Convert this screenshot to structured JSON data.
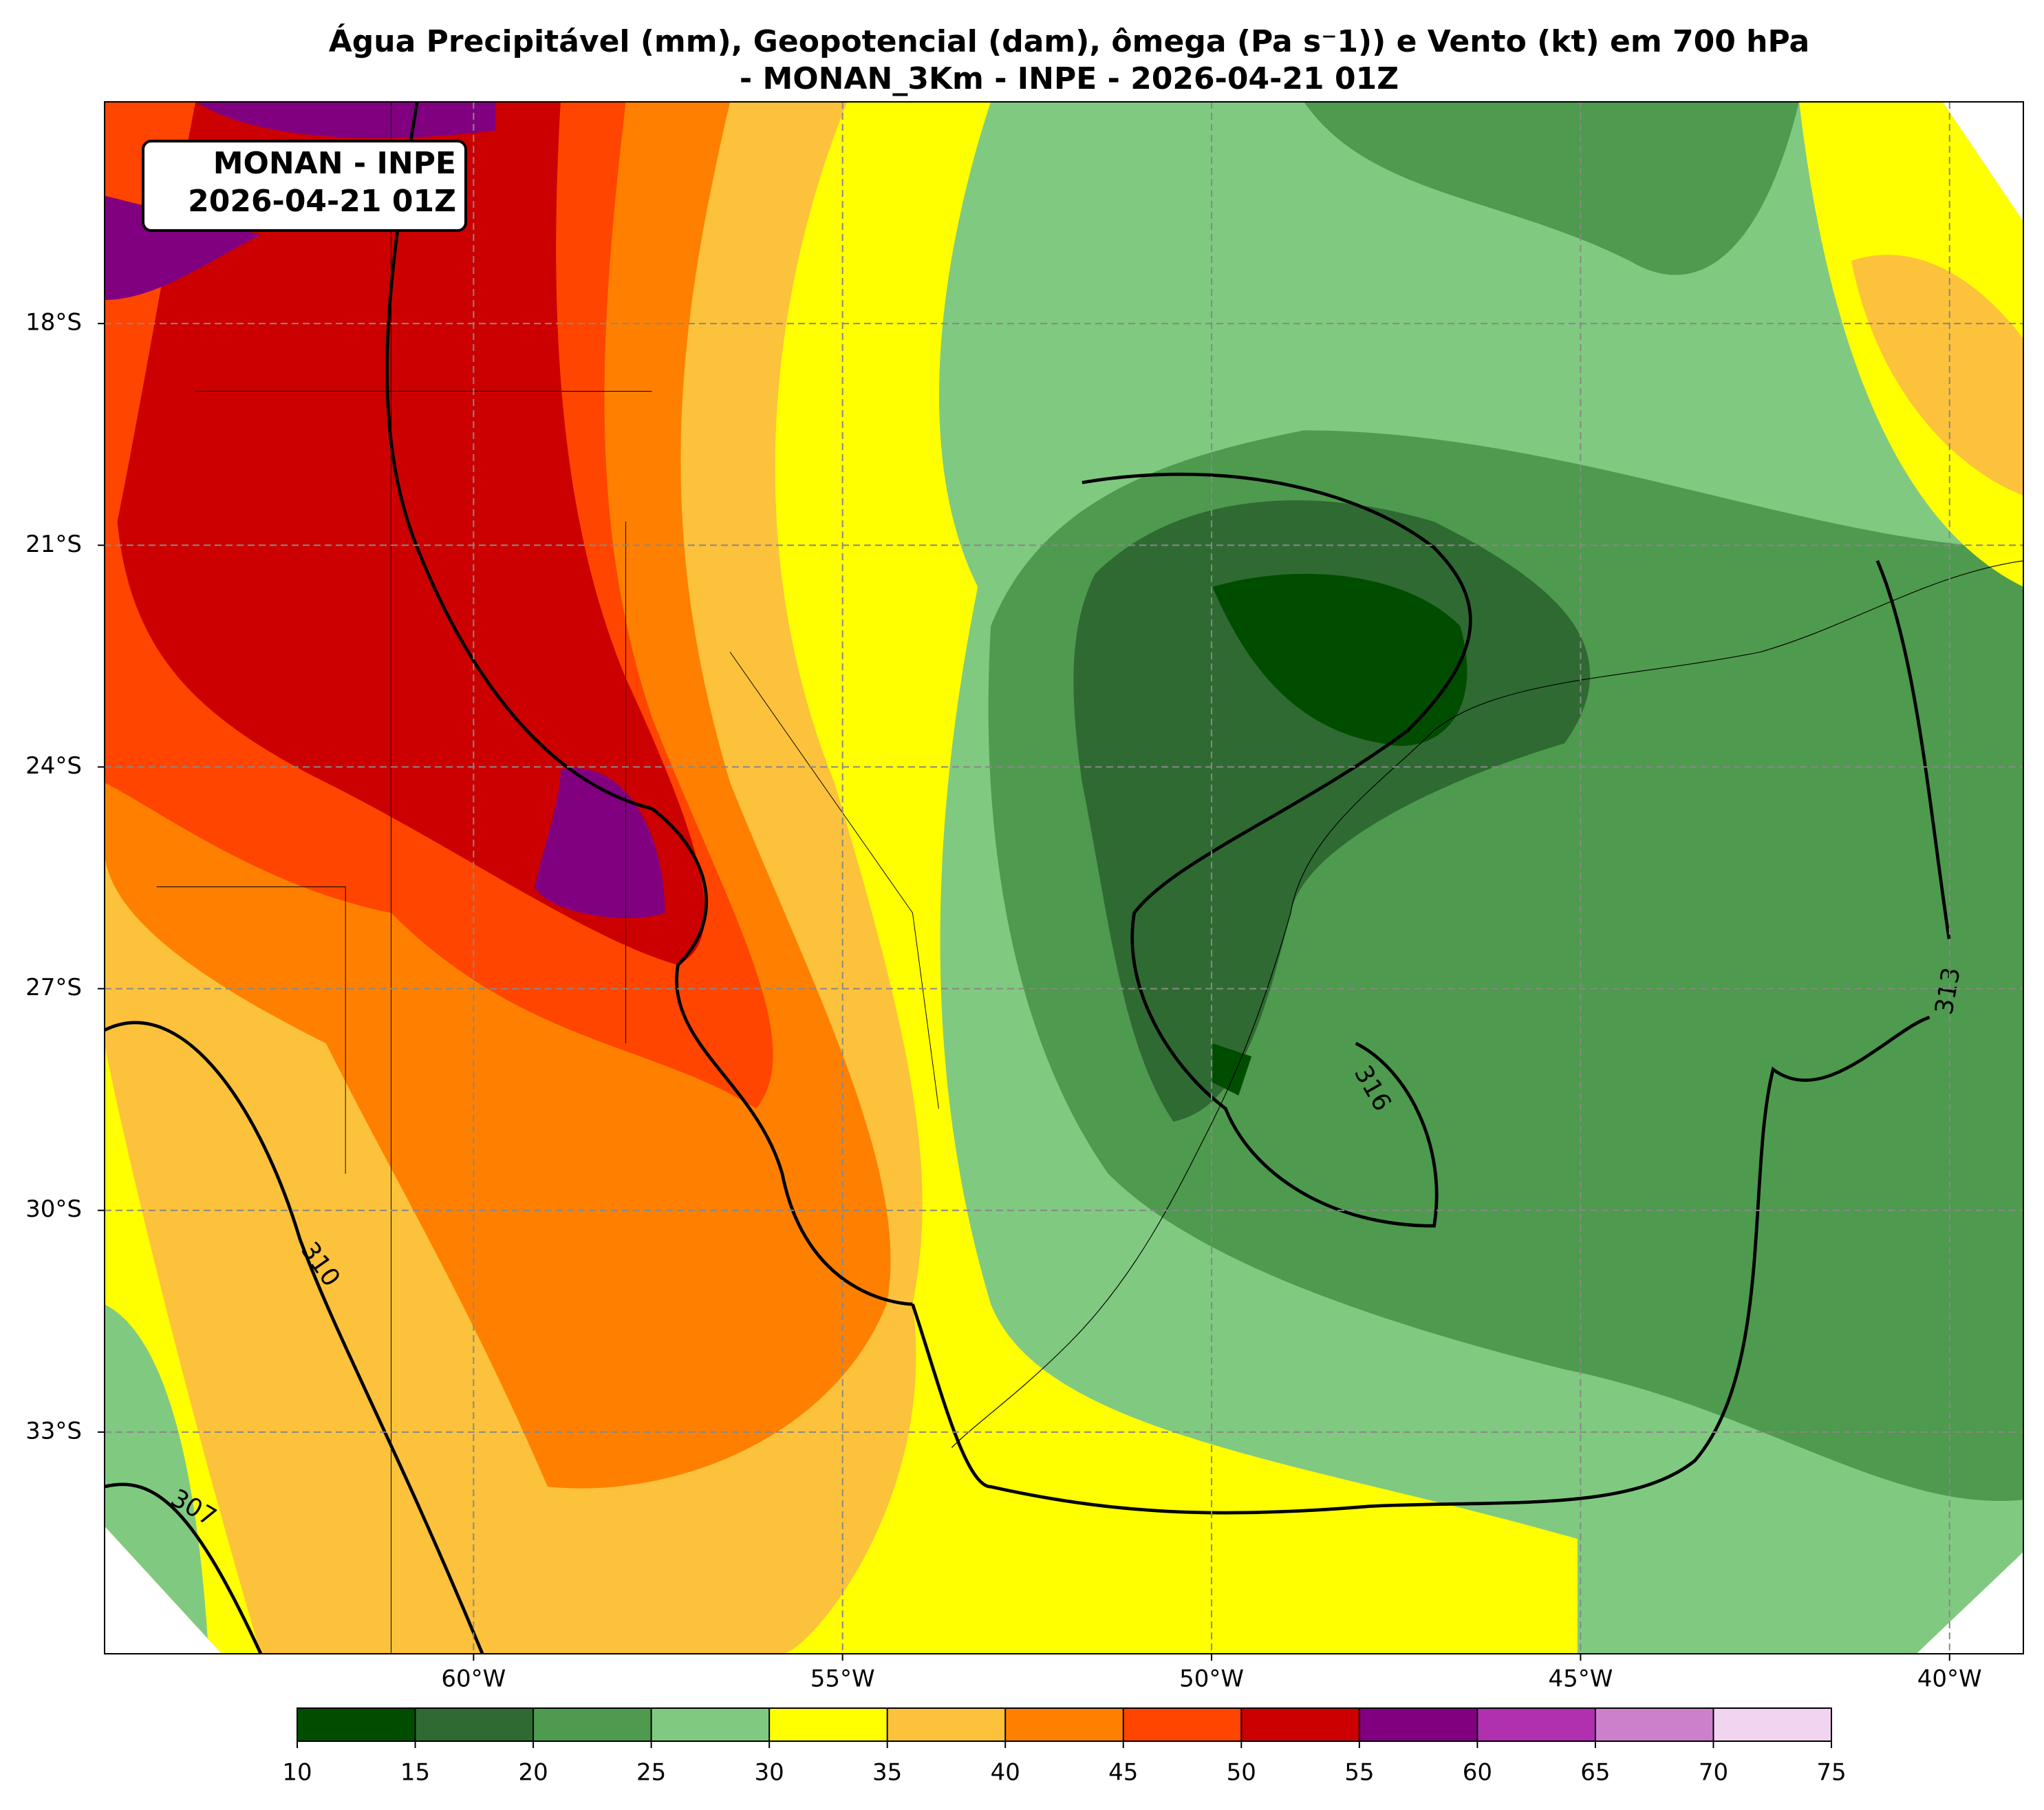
{
  "title": "Água Precipitável (mm), Geopotencial (dam), ômega (Pa s⁻1)) e Vento (kt) em 700 hPa",
  "subtitle": "- MONAN_3Km - INPE - 2026-04-21 01Z",
  "annotation": [
    "MONAN - INPE",
    "2026-04-21 01Z"
  ],
  "map": {
    "xlim": [
      -65,
      -39
    ],
    "ylim": [
      -36,
      -15
    ],
    "xticks": [
      {
        "value": -60,
        "label": "60°W"
      },
      {
        "value": -55,
        "label": "55°W"
      },
      {
        "value": -50,
        "label": "50°W"
      },
      {
        "value": -45,
        "label": "45°W"
      },
      {
        "value": -40,
        "label": "40°W"
      }
    ],
    "yticks": [
      {
        "value": -18,
        "label": "18°S"
      },
      {
        "value": -21,
        "label": "21°S"
      },
      {
        "value": -24,
        "label": "24°S"
      },
      {
        "value": -27,
        "label": "27°S"
      },
      {
        "value": -30,
        "label": "30°S"
      },
      {
        "value": -33,
        "label": "33°S"
      }
    ],
    "grid": true
  },
  "contour_labels": [
    "313",
    "316",
    "310",
    "307"
  ],
  "colorbar": {
    "ticks": [
      10,
      15,
      20,
      25,
      30,
      35,
      40,
      45,
      50,
      55,
      60,
      65,
      70,
      75
    ],
    "colors": [
      "#004d00",
      "#2f6a32",
      "#4e9a4e",
      "#80c980",
      "#ffff00",
      "#fcc23b",
      "#ff8000",
      "#ff4500",
      "#cc0000",
      "#800080",
      "#b030b0",
      "#cc80cc",
      "#f0d4f0"
    ]
  }
}
